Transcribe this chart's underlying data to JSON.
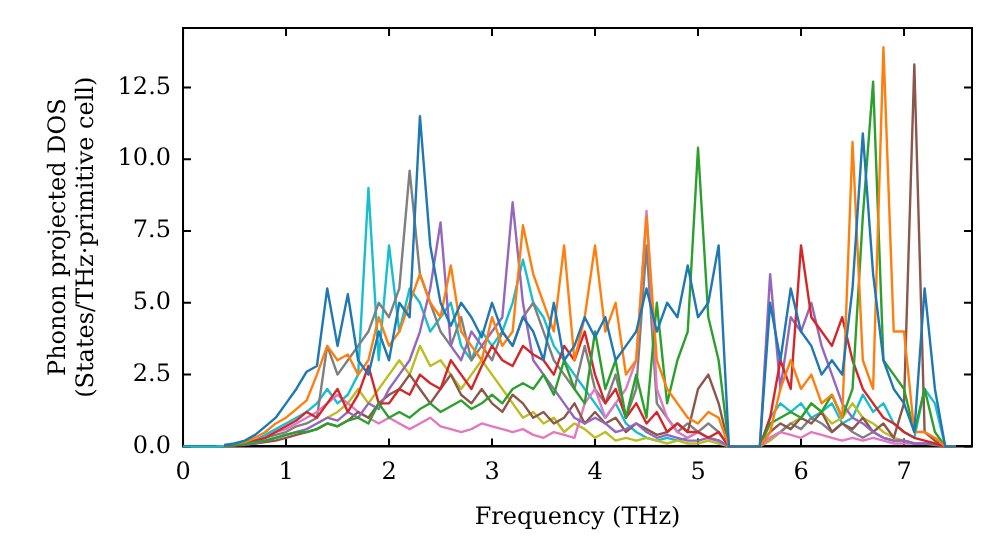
{
  "chart_data": {
    "type": "line",
    "xlabel": "Frequency (THz)",
    "ylabel": "Phonon projected DOS\n(States/THz·primitive cell)",
    "x": [
      0,
      0.1,
      0.2,
      0.3,
      0.4,
      0.5,
      0.6,
      0.7,
      0.8,
      0.9,
      1,
      1.1,
      1.2,
      1.3,
      1.4,
      1.5,
      1.6,
      1.7,
      1.8,
      1.9,
      2,
      2.1,
      2.2,
      2.3,
      2.4,
      2.5,
      2.6,
      2.7,
      2.8,
      2.9,
      3,
      3.1,
      3.2,
      3.3,
      3.4,
      3.5,
      3.6,
      3.7,
      3.8,
      3.9,
      4,
      4.1,
      4.2,
      4.3,
      4.4,
      4.5,
      4.6,
      4.7,
      4.8,
      4.9,
      5,
      5.1,
      5.2,
      5.3,
      5.4,
      5.5,
      5.6,
      5.7,
      5.8,
      5.9,
      6,
      6.1,
      6.2,
      6.3,
      6.4,
      6.5,
      6.6,
      6.7,
      6.8,
      6.9,
      7,
      7.1,
      7.2,
      7.3,
      7.4,
      7.5
    ],
    "series": [
      {
        "color": "#1f77b4",
        "values": [
          null,
          null,
          null,
          null,
          0.05,
          0.1,
          0.2,
          0.4,
          0.7,
          1.0,
          1.5,
          2.0,
          2.6,
          2.8,
          5.5,
          3.5,
          5.3,
          3.0,
          2.5,
          4.0,
          3.0,
          5.0,
          4.5,
          11.5,
          7.0,
          5.0,
          4.2,
          5.0,
          4.5,
          3.8,
          5.0,
          4.0,
          3.5,
          4.5,
          4.0,
          3.0,
          5.0,
          3.0,
          3.5,
          4.5,
          3.8,
          4.5,
          3.0,
          3.5,
          4.0,
          5.5,
          4.0,
          5.0,
          4.5,
          6.3,
          4.5,
          5.0,
          7.0,
          0,
          0,
          0,
          0,
          5.0,
          3.0,
          5.5,
          4.0,
          3.5,
          2.5,
          3.0,
          2.5,
          5.5,
          10.9,
          6.0,
          3.0,
          2.0,
          1.5,
          0.5,
          5.5,
          2.0,
          0,
          0
        ]
      },
      {
        "color": "#ff7f0e",
        "values": [
          null,
          null,
          null,
          null,
          null,
          0.1,
          0.15,
          0.3,
          0.5,
          0.8,
          1.0,
          1.3,
          1.6,
          2.5,
          3.5,
          3.0,
          3.2,
          2.5,
          3.0,
          4.5,
          3.5,
          4.0,
          5.0,
          6.0,
          5.0,
          4.5,
          6.3,
          4.0,
          3.5,
          3.0,
          4.5,
          3.5,
          4.0,
          7.7,
          6.0,
          5.0,
          4.0,
          7.0,
          3.0,
          4.5,
          7.0,
          4.0,
          5.0,
          2.5,
          3.0,
          8.0,
          3.0,
          2.0,
          1.5,
          1.0,
          0.8,
          1.2,
          1.0,
          0,
          0,
          0,
          0,
          0.5,
          2.0,
          3.0,
          2.0,
          2.5,
          1.5,
          1.8,
          1.0,
          10.6,
          3.0,
          2.0,
          13.9,
          4.0,
          4.0,
          0.5,
          0.5,
          0.3,
          0,
          0
        ]
      },
      {
        "color": "#2ca02c",
        "values": [
          null,
          null,
          null,
          null,
          0.02,
          0.05,
          0.1,
          0.15,
          0.2,
          0.3,
          0.4,
          0.5,
          0.5,
          0.6,
          0.8,
          0.7,
          0.9,
          1.0,
          0.8,
          1.5,
          1.0,
          1.2,
          1.0,
          1.3,
          1.5,
          1.2,
          1.4,
          1.6,
          1.3,
          1.5,
          1.8,
          1.5,
          2.0,
          2.2,
          2.0,
          2.5,
          1.8,
          3.0,
          2.0,
          1.5,
          4.0,
          2.0,
          3.0,
          1.0,
          2.5,
          1.0,
          5.0,
          1.5,
          3.0,
          4.0,
          10.4,
          4.5,
          3.0,
          0,
          0,
          0,
          0,
          0.8,
          1.0,
          1.2,
          1.0,
          1.5,
          1.2,
          1.8,
          1.0,
          2.0,
          8.0,
          12.7,
          3.0,
          2.5,
          2.0,
          0.5,
          2.0,
          0.5,
          0,
          0
        ]
      },
      {
        "color": "#d62728",
        "values": [
          null,
          null,
          null,
          null,
          0.02,
          0.05,
          0.1,
          0.2,
          0.3,
          0.5,
          0.7,
          0.9,
          1.2,
          1.0,
          1.5,
          2.0,
          1.2,
          1.8,
          2.8,
          1.5,
          1.5,
          2.0,
          1.8,
          2.5,
          2.2,
          2.0,
          3.0,
          2.5,
          2.0,
          2.8,
          3.5,
          3.0,
          2.8,
          3.5,
          3.2,
          3.0,
          2.5,
          3.5,
          3.0,
          4.0,
          2.5,
          1.5,
          2.0,
          1.0,
          1.5,
          0.8,
          1.2,
          0.5,
          0.8,
          0.5,
          0.5,
          0.3,
          0.5,
          0,
          0,
          0,
          0,
          1.0,
          3.0,
          2.0,
          7.0,
          4.5,
          4.0,
          3.5,
          4.5,
          3.0,
          2.0,
          1.5,
          1.0,
          0.8,
          0.5,
          0.3,
          0.2,
          0.1,
          0,
          0
        ]
      },
      {
        "color": "#9467bd",
        "values": [
          null,
          null,
          null,
          null,
          0.02,
          0.05,
          0.08,
          0.1,
          0.2,
          0.3,
          0.4,
          0.5,
          0.6,
          0.8,
          1.0,
          0.9,
          1.2,
          1.0,
          1.5,
          1.3,
          2.0,
          2.5,
          3.0,
          4.0,
          5.5,
          7.8,
          3.5,
          3.0,
          4.0,
          3.5,
          4.0,
          4.5,
          8.5,
          5.0,
          3.0,
          2.5,
          2.0,
          1.5,
          1.0,
          0.8,
          1.0,
          0.8,
          0.5,
          0.6,
          0.8,
          0.5,
          0.3,
          0.4,
          0.3,
          0.2,
          0.2,
          0.3,
          0.2,
          0,
          0,
          0,
          0,
          6.0,
          2.0,
          4.5,
          4.0,
          5.0,
          3.5,
          2.5,
          1.5,
          1.0,
          0.8,
          0.5,
          0.3,
          0.2,
          0.2,
          0.1,
          0.1,
          0.1,
          0,
          0
        ]
      },
      {
        "color": "#8c564b",
        "values": [
          null,
          null,
          null,
          null,
          0.02,
          0.03,
          0.05,
          0.1,
          0.15,
          0.2,
          0.3,
          0.4,
          0.5,
          0.6,
          0.8,
          0.7,
          0.9,
          1.2,
          1.0,
          1.5,
          1.8,
          2.0,
          2.5,
          2.0,
          1.5,
          2.0,
          2.5,
          1.8,
          1.5,
          2.0,
          1.5,
          1.2,
          1.8,
          1.5,
          1.0,
          1.2,
          0.8,
          1.0,
          1.5,
          0.8,
          1.2,
          0.8,
          1.0,
          0.5,
          0.8,
          0.6,
          0.4,
          0.5,
          0.8,
          0.5,
          2.0,
          2.5,
          1.5,
          0,
          0,
          0,
          0,
          0.5,
          0.8,
          0.6,
          1.0,
          0.8,
          1.2,
          0.5,
          0.8,
          0.6,
          1.0,
          0.5,
          0.8,
          0.3,
          1.5,
          13.3,
          0.5,
          0.2,
          0,
          0
        ]
      },
      {
        "color": "#e377c2",
        "values": [
          null,
          null,
          null,
          null,
          null,
          null,
          null,
          0.2,
          0.3,
          0.5,
          0.6,
          0.8,
          1.0,
          1.2,
          1.5,
          1.8,
          1.5,
          1.2,
          1.0,
          0.8,
          1.0,
          0.8,
          0.6,
          0.8,
          1.0,
          0.7,
          0.6,
          0.5,
          0.6,
          0.8,
          0.7,
          0.6,
          0.5,
          0.6,
          0.4,
          0.3,
          0.5,
          0.4,
          0.3,
          1.5,
          2.0,
          1.0,
          1.5,
          2.0,
          3.0,
          8.2,
          2.0,
          1.0,
          0.5,
          0.3,
          0.5,
          0.3,
          0.2,
          0,
          0,
          0,
          0,
          0.3,
          0.5,
          0.4,
          0.3,
          0.5,
          0.4,
          0.3,
          0.2,
          0.3,
          0.2,
          0.3,
          0.2,
          0.1,
          0.1,
          0.1,
          0.1,
          null,
          null,
          null
        ]
      },
      {
        "color": "#7f7f7f",
        "values": [
          null,
          null,
          null,
          null,
          0.02,
          0.05,
          0.1,
          0.2,
          0.3,
          0.4,
          0.5,
          0.7,
          0.8,
          1.0,
          3.5,
          2.5,
          3.0,
          3.5,
          4.0,
          5.0,
          4.5,
          5.5,
          9.6,
          6.0,
          5.0,
          4.0,
          3.5,
          4.5,
          3.0,
          3.5,
          3.0,
          4.0,
          3.5,
          4.5,
          5.0,
          4.0,
          3.0,
          2.5,
          2.0,
          3.5,
          2.0,
          1.5,
          2.5,
          1.0,
          2.0,
          7.0,
          1.5,
          1.0,
          0.5,
          0.8,
          0.5,
          0.8,
          0.5,
          0,
          0,
          0,
          0,
          0.3,
          0.5,
          0.8,
          0.6,
          1.0,
          0.8,
          0.5,
          0.8,
          0.5,
          0.3,
          0.5,
          0.3,
          0.2,
          0.2,
          0.1,
          0.1,
          0.05,
          0,
          0
        ]
      },
      {
        "color": "#bcbd22",
        "values": [
          null,
          null,
          null,
          null,
          null,
          null,
          null,
          null,
          null,
          null,
          null,
          null,
          null,
          0.8,
          1.0,
          1.2,
          1.5,
          2.0,
          1.5,
          2.0,
          2.5,
          3.0,
          2.5,
          3.5,
          2.8,
          3.0,
          2.5,
          2.0,
          2.5,
          3.0,
          2.5,
          2.0,
          1.5,
          1.0,
          1.2,
          0.8,
          1.0,
          0.5,
          0.8,
          0.6,
          0.3,
          0.5,
          0.2,
          0.3,
          0.2,
          0.3,
          0.2,
          0.1,
          0.2,
          0.1,
          0.1,
          0.2,
          0.1,
          0,
          0,
          0,
          0,
          0.2,
          0.5,
          0.8,
          1.0,
          1.5,
          1.2,
          0.8,
          1.0,
          1.5,
          1.0,
          0.8,
          0.5,
          0.3,
          0.2,
          0.1,
          null,
          null,
          null,
          null
        ]
      },
      {
        "color": "#17becf",
        "values": [
          0,
          0,
          0,
          0,
          0.02,
          0.05,
          0.1,
          0.2,
          0.4,
          0.6,
          0.8,
          1.0,
          1.2,
          1.5,
          2.0,
          1.5,
          1.8,
          2.5,
          9.0,
          3.0,
          7.0,
          4.0,
          5.5,
          5.0,
          4.0,
          4.5,
          5.0,
          3.5,
          3.0,
          4.0,
          3.5,
          4.0,
          5.0,
          6.5,
          5.0,
          4.5,
          3.5,
          3.0,
          2.5,
          2.0,
          1.5,
          1.0,
          1.5,
          0.8,
          0.5,
          0.3,
          0.2,
          0.3,
          0.2,
          0.3,
          0.5,
          0.3,
          0.2,
          0,
          0,
          0,
          0,
          1.0,
          1.5,
          1.2,
          1.5,
          1.0,
          1.2,
          1.5,
          0.8,
          1.0,
          1.8,
          1.2,
          1.5,
          0.8,
          0.5,
          0.3,
          2.0,
          1.5,
          0,
          0
        ]
      }
    ],
    "xlim": [
      0,
      7.66
    ],
    "ylim": [
      0,
      14.57
    ],
    "xticks": [
      0,
      1,
      2,
      3,
      4,
      5,
      6,
      7
    ],
    "yticks": [
      {
        "value": 0,
        "label": "0.0"
      },
      {
        "value": 2.5,
        "label": "2.5"
      },
      {
        "value": 5,
        "label": "5.0"
      },
      {
        "value": 7.5,
        "label": "7.5"
      },
      {
        "value": 10,
        "label": "10.0"
      },
      {
        "value": 12.5,
        "label": "12.5"
      }
    ],
    "grid": false,
    "legend": false,
    "marker": "none",
    "line_style": "solid"
  }
}
